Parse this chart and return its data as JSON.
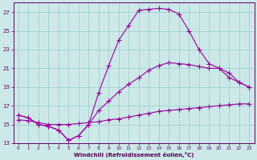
{
  "xlabel": "Windchill (Refroidissement éolien,°C)",
  "xlim": [
    -0.5,
    23.5
  ],
  "ylim": [
    13,
    28
  ],
  "yticks": [
    13,
    15,
    17,
    19,
    21,
    23,
    25,
    27
  ],
  "xticks": [
    0,
    1,
    2,
    3,
    4,
    5,
    6,
    7,
    8,
    9,
    10,
    11,
    12,
    13,
    14,
    15,
    16,
    17,
    18,
    19,
    20,
    21,
    22,
    23
  ],
  "bg_color": "#cce8e8",
  "grid_color": "#99cccc",
  "line_color": "#990099",
  "line1_x": [
    0,
    1,
    2,
    3,
    4,
    5,
    6,
    7,
    8,
    9,
    10,
    11,
    12,
    13,
    14,
    15,
    16,
    17,
    18,
    19,
    20,
    21,
    22,
    23
  ],
  "line1_y": [
    15.5,
    15.4,
    15.2,
    15.0,
    15.0,
    15.0,
    15.1,
    15.2,
    15.3,
    15.5,
    15.6,
    15.8,
    16.0,
    16.2,
    16.4,
    16.5,
    16.6,
    16.7,
    16.8,
    16.9,
    17.0,
    17.1,
    17.2,
    17.2
  ],
  "line2_x": [
    0,
    1,
    2,
    3,
    4,
    5,
    6,
    7,
    8,
    9,
    10,
    11,
    12,
    13,
    14,
    15,
    16,
    17,
    18,
    19,
    20,
    21,
    22,
    23
  ],
  "line2_y": [
    16.0,
    15.7,
    15.0,
    14.8,
    14.4,
    13.3,
    13.8,
    15.0,
    18.4,
    21.3,
    24.0,
    25.6,
    27.2,
    27.3,
    27.4,
    27.3,
    26.8,
    25.0,
    23.0,
    21.5,
    21.0,
    20.0,
    19.5,
    19.0
  ],
  "line3_x": [
    0,
    1,
    2,
    3,
    4,
    5,
    6,
    7,
    8,
    9,
    10,
    11,
    12,
    13,
    14,
    15,
    16,
    17,
    18,
    19,
    20,
    21,
    22,
    23
  ],
  "line3_y": [
    16.0,
    15.7,
    15.0,
    14.8,
    14.4,
    13.3,
    13.8,
    15.0,
    16.5,
    17.5,
    18.5,
    19.3,
    20.0,
    20.8,
    21.3,
    21.6,
    21.5,
    21.4,
    21.2,
    21.0,
    21.0,
    20.5,
    19.5,
    19.0
  ]
}
